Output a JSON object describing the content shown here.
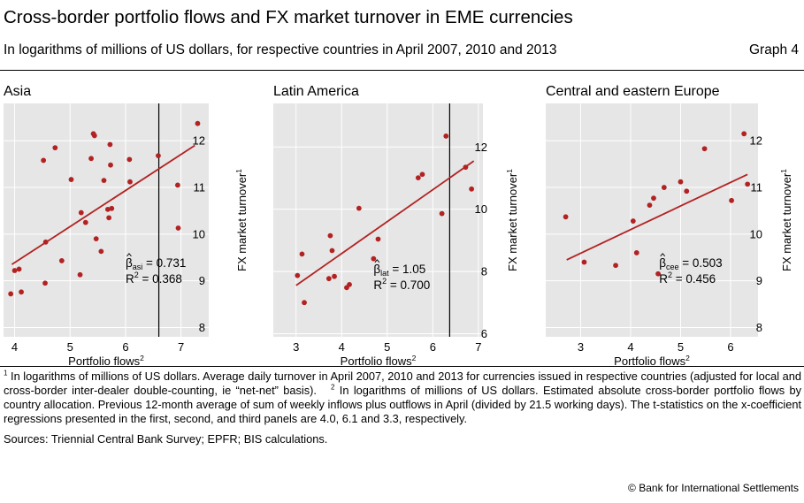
{
  "header": {
    "title": "Cross-border portfolio flows and FX market turnover in EME currencies",
    "subtitle": "In logarithms of millions of US dollars, for respective countries in April 2007, 2010 and 2013",
    "graph_number": "Graph 4"
  },
  "footer": {
    "note1_mark": "1",
    "note1_text": "In logarithms of millions of US dollars. Average daily turnover in April 2007, 2010 and 2013 for currencies issued in respective countries (adjusted for local and cross-border inter-dealer double-counting, ie “net-net” basis).",
    "note2_mark": "2",
    "note2_text": "In logarithms of millions of US dollars. Estimated absolute cross-border portfolio flows by country allocation. Previous 12-month average of sum of weekly inflows plus outflows in April (divided by 21.5 working days). The t-statistics on the x-coefficient regressions presented in the first, second, and third panels are 4.0, 6.1 and 3.3, respectively.",
    "sources": "Sources: Triennial Central Bank Survey; EPFR; BIS calculations.",
    "copyright": "© Bank for International Settlements"
  },
  "colors": {
    "marker": "#b22222",
    "fit_line": "#b22222",
    "plot_bg": "#e6e6e6",
    "gridline": "#ffffff",
    "vline": "#000000"
  },
  "chart_data": [
    {
      "type": "scatter",
      "title": "Asia",
      "xlabel": "Portfolio flows",
      "xlabel_sup": "2",
      "ylabel": "FX market turnover",
      "ylabel_sup": "1",
      "xlim": [
        3.8,
        7.5
      ],
      "ylim": [
        7.8,
        12.8
      ],
      "xticks": [
        4,
        5,
        6,
        7
      ],
      "yticks": [
        8,
        9,
        10,
        11,
        12
      ],
      "grid": true,
      "vline_x": 6.6,
      "fit_line": [
        [
          3.95,
          9.35
        ],
        [
          7.25,
          11.9
        ]
      ],
      "annotation": {
        "beta_symbol": "β",
        "beta_sub": "asi",
        "beta_value": " = 0.731",
        "r2_label": "R",
        "r2_sup": "2",
        "r2_value": " = 0.368",
        "x": 6.0,
        "y": 9.3
      },
      "points": [
        [
          3.93,
          8.72
        ],
        [
          4.0,
          9.22
        ],
        [
          4.08,
          9.25
        ],
        [
          4.12,
          8.76
        ],
        [
          4.52,
          11.58
        ],
        [
          4.55,
          8.95
        ],
        [
          4.56,
          9.83
        ],
        [
          4.73,
          11.85
        ],
        [
          4.85,
          9.43
        ],
        [
          5.02,
          11.17
        ],
        [
          5.18,
          9.13
        ],
        [
          5.2,
          10.46
        ],
        [
          5.28,
          10.25
        ],
        [
          5.38,
          11.62
        ],
        [
          5.42,
          12.15
        ],
        [
          5.44,
          12.11
        ],
        [
          5.47,
          9.9
        ],
        [
          5.56,
          9.63
        ],
        [
          5.61,
          11.15
        ],
        [
          5.68,
          10.53
        ],
        [
          5.7,
          10.35
        ],
        [
          5.72,
          11.92
        ],
        [
          5.73,
          11.48
        ],
        [
          5.75,
          10.55
        ],
        [
          6.07,
          11.6
        ],
        [
          6.08,
          11.12
        ],
        [
          6.59,
          11.68
        ],
        [
          6.94,
          11.05
        ],
        [
          6.95,
          10.13
        ],
        [
          7.3,
          12.37
        ]
      ]
    },
    {
      "type": "scatter",
      "title": "Latin America",
      "xlabel": "Portfolio flows",
      "xlabel_sup": "2",
      "ylabel": "FX market turnover",
      "ylabel_sup": "1",
      "xlim": [
        2.5,
        7.1
      ],
      "ylim": [
        5.9,
        13.4
      ],
      "xticks": [
        3,
        4,
        5,
        6,
        7
      ],
      "yticks": [
        6,
        8,
        10,
        12
      ],
      "grid": true,
      "vline_x": 6.37,
      "fit_line": [
        [
          3.0,
          7.55
        ],
        [
          6.9,
          11.55
        ]
      ],
      "annotation": {
        "beta_symbol": "β",
        "beta_sub": "lat",
        "beta_value": " = 1.05",
        "r2_label": "R",
        "r2_sup": "2",
        "r2_value": " = 0.700",
        "x": 4.7,
        "y": 7.95
      },
      "points": [
        [
          3.03,
          7.87
        ],
        [
          3.13,
          8.56
        ],
        [
          3.18,
          7.0
        ],
        [
          3.72,
          7.77
        ],
        [
          3.75,
          9.15
        ],
        [
          3.79,
          8.67
        ],
        [
          3.84,
          7.84
        ],
        [
          4.11,
          7.48
        ],
        [
          4.17,
          7.58
        ],
        [
          4.38,
          10.03
        ],
        [
          4.7,
          8.41
        ],
        [
          4.8,
          9.04
        ],
        [
          5.68,
          11.01
        ],
        [
          5.77,
          11.12
        ],
        [
          6.2,
          9.86
        ],
        [
          6.29,
          12.35
        ],
        [
          6.72,
          11.35
        ],
        [
          6.85,
          10.65
        ]
      ]
    },
    {
      "type": "scatter",
      "title": "Central and eastern Europe",
      "xlabel": "Portfolio flows",
      "xlabel_sup": "2",
      "ylabel": "FX market turnover",
      "ylabel_sup": "1",
      "xlim": [
        2.3,
        6.55
      ],
      "ylim": [
        7.8,
        12.8
      ],
      "xticks": [
        3,
        4,
        5,
        6
      ],
      "yticks": [
        8,
        9,
        10,
        11,
        12
      ],
      "grid": true,
      "vline_x": null,
      "fit_line": [
        [
          2.72,
          9.45
        ],
        [
          6.34,
          11.28
        ]
      ],
      "annotation": {
        "beta_symbol": "β",
        "beta_sub": "cee",
        "beta_value": " = 0.503",
        "r2_label": "R",
        "r2_sup": "2",
        "r2_value": " = 0.456",
        "x": 4.57,
        "y": 9.3
      },
      "points": [
        [
          2.7,
          10.37
        ],
        [
          3.07,
          9.4
        ],
        [
          3.7,
          9.33
        ],
        [
          4.05,
          10.28
        ],
        [
          4.12,
          9.6
        ],
        [
          4.38,
          10.62
        ],
        [
          4.46,
          10.77
        ],
        [
          4.55,
          9.15
        ],
        [
          4.67,
          11.0
        ],
        [
          5.0,
          11.12
        ],
        [
          5.12,
          10.92
        ],
        [
          5.48,
          11.83
        ],
        [
          6.02,
          10.72
        ],
        [
          6.27,
          12.15
        ],
        [
          6.34,
          11.07
        ]
      ]
    }
  ]
}
